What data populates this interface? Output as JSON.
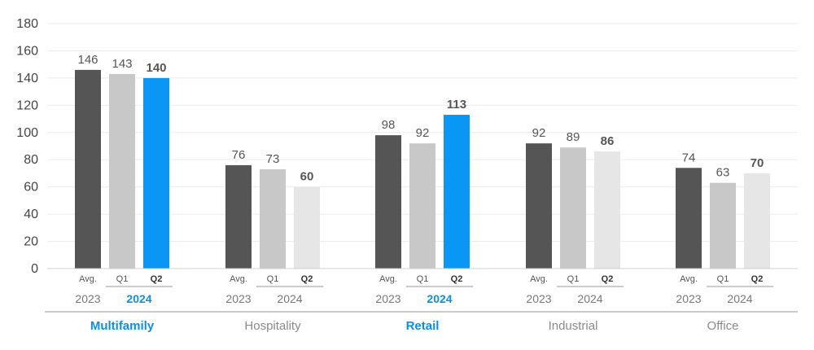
{
  "chart_data": {
    "type": "bar",
    "ylim": [
      0,
      180
    ],
    "yticks": [
      0,
      20,
      40,
      60,
      80,
      100,
      120,
      140,
      160,
      180
    ],
    "grid": true,
    "sub_labels": [
      "Avg.",
      "Q1",
      "Q2"
    ],
    "year_labels": [
      "2023",
      "2024"
    ],
    "colors": {
      "avg": "#555555",
      "q1": "#c8c8c8",
      "q2_default": "#e6e6e6",
      "q2_highlight": "#0a96f5",
      "highlight_text": "#0a8fe8"
    },
    "groups": [
      {
        "category": "Multifamily",
        "highlight": true,
        "values": [
          146,
          143,
          140
        ]
      },
      {
        "category": "Hospitality",
        "highlight": false,
        "values": [
          76,
          73,
          60
        ]
      },
      {
        "category": "Retail",
        "highlight": true,
        "values": [
          98,
          92,
          113
        ]
      },
      {
        "category": "Industrial",
        "highlight": false,
        "values": [
          92,
          89,
          86
        ]
      },
      {
        "category": "Office",
        "highlight": false,
        "values": [
          74,
          63,
          70
        ]
      }
    ]
  }
}
